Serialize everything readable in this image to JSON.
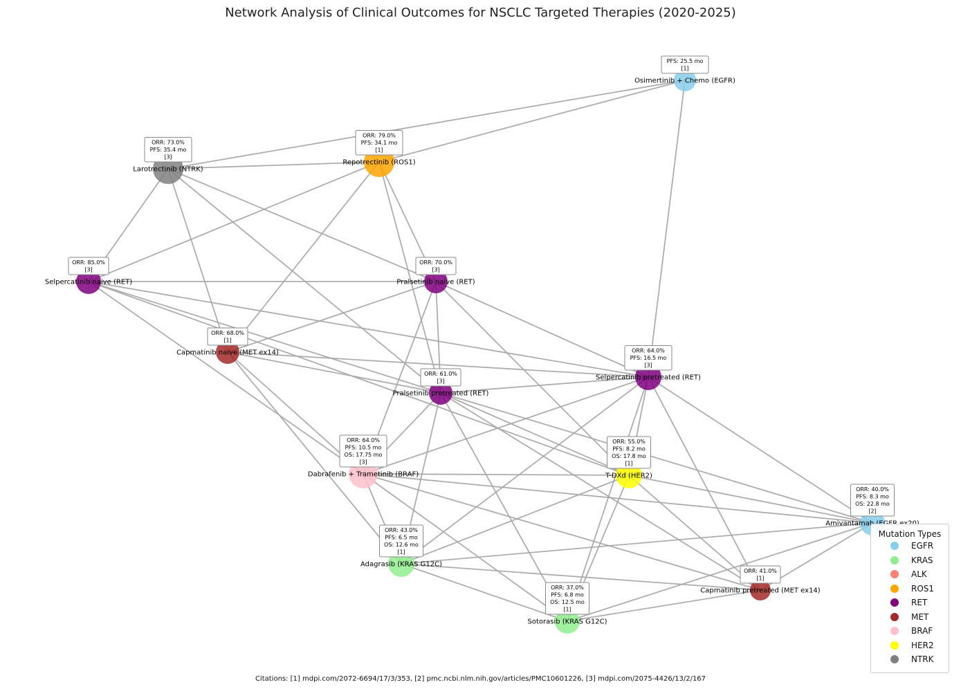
{
  "title": "Network Analysis of Clinical Outcomes for NSCLC Targeted Therapies (2020-2025)",
  "citations": "Citations: [1] mdpi.com/2072-6694/17/3/353, [2] pmc.ncbi.nlm.nih.gov/articles/PMC10601226, [3] mdpi.com/2075-4426/13/2/167",
  "legend": {
    "title": "Mutation Types",
    "items": [
      {
        "label": "EGFR",
        "color": "#87ceeb"
      },
      {
        "label": "KRAS",
        "color": "#90ee90"
      },
      {
        "label": "ALK",
        "color": "#fa8072"
      },
      {
        "label": "ROS1",
        "color": "#ffa500"
      },
      {
        "label": "RET",
        "color": "#800080"
      },
      {
        "label": "MET",
        "color": "#a52a2a"
      },
      {
        "label": "BRAF",
        "color": "#ffc0cb"
      },
      {
        "label": "HER2",
        "color": "#ffff00"
      },
      {
        "label": "NTRK",
        "color": "#808080"
      }
    ]
  },
  "nodes": [
    {
      "id": "osimertinib",
      "label": "Osimertinib + Chemo (EGFR)",
      "mutation": "EGFR",
      "metrics": [
        "PFS: 25.5 mo",
        "[1]"
      ]
    },
    {
      "id": "repotrectinib",
      "label": "Repotrectinib (ROS1)",
      "mutation": "ROS1",
      "metrics": [
        "ORR: 79.0%",
        "PFS: 34.1 mo",
        "[1]"
      ]
    },
    {
      "id": "larotrectinib",
      "label": "Larotrectinib (NTRK)",
      "mutation": "NTRK",
      "metrics": [
        "ORR: 73.0%",
        "PFS: 35.4 mo",
        "[3]"
      ]
    },
    {
      "id": "selpercatinib_naive",
      "label": "Selpercatinib naive (RET)",
      "mutation": "RET",
      "metrics": [
        "ORR: 85.0%",
        "[3]"
      ]
    },
    {
      "id": "pralsetinib_naive",
      "label": "Pralsetinib naive (RET)",
      "mutation": "RET",
      "metrics": [
        "ORR: 70.0%",
        "[3]"
      ]
    },
    {
      "id": "capmatinib_naive",
      "label": "Capmatinib naive (MET ex14)",
      "mutation": "MET",
      "metrics": [
        "ORR: 68.0%",
        "[1]"
      ]
    },
    {
      "id": "selpercatinib_pre",
      "label": "Selpercatinib pretreated (RET)",
      "mutation": "RET",
      "metrics": [
        "ORR: 64.0%",
        "PFS: 16.5 mo",
        "[3]"
      ]
    },
    {
      "id": "pralsetinib_pre",
      "label": "Pralsetinib pretreated (RET)",
      "mutation": "RET",
      "metrics": [
        "ORR: 61.0%",
        "[3]"
      ]
    },
    {
      "id": "dabrafenib",
      "label": "Dabrafenib + Trametinib (BRAF)",
      "mutation": "BRAF",
      "metrics": [
        "ORR: 64.0%",
        "PFS: 10.5 mo",
        "OS: 17.75 mo",
        "[3]"
      ]
    },
    {
      "id": "tdxd",
      "label": "T-DXd (HER2)",
      "mutation": "HER2",
      "metrics": [
        "ORR: 55.0%",
        "PFS: 8.2 mo",
        "OS: 17.8 mo",
        "[1]"
      ]
    },
    {
      "id": "amivantamab",
      "label": "Amivantamab (EGFR ex20)",
      "mutation": "EGFR",
      "metrics": [
        "ORR: 40.0%",
        "PFS: 8.3 mo",
        "OS: 22.8 mo",
        "[2]"
      ]
    },
    {
      "id": "adagrasib",
      "label": "Adagrasib (KRAS G12C)",
      "mutation": "KRAS",
      "metrics": [
        "ORR: 43.0%",
        "PFS: 6.5 mo",
        "OS: 12.6 mo",
        "[1]"
      ]
    },
    {
      "id": "capmatinib_pre",
      "label": "Capmatinib pretreated (MET ex14)",
      "mutation": "MET",
      "metrics": [
        "ORR: 41.0%",
        "[1]"
      ]
    },
    {
      "id": "sotorasib",
      "label": "Sotorasib (KRAS G12C)",
      "mutation": "KRAS",
      "metrics": [
        "ORR: 37.0%",
        "PFS: 6.8 mo",
        "OS: 12.5 mo",
        "[1]"
      ]
    }
  ],
  "edges": [
    [
      "osimertinib",
      "larotrectinib"
    ],
    [
      "osimertinib",
      "repotrectinib"
    ],
    [
      "osimertinib",
      "selpercatinib_pre"
    ],
    [
      "larotrectinib",
      "repotrectinib"
    ],
    [
      "larotrectinib",
      "selpercatinib_naive"
    ],
    [
      "larotrectinib",
      "capmatinib_naive"
    ],
    [
      "larotrectinib",
      "pralsetinib_naive"
    ],
    [
      "larotrectinib",
      "pralsetinib_pre"
    ],
    [
      "repotrectinib",
      "selpercatinib_naive"
    ],
    [
      "repotrectinib",
      "capmatinib_naive"
    ],
    [
      "repotrectinib",
      "pralsetinib_naive"
    ],
    [
      "repotrectinib",
      "pralsetinib_pre"
    ],
    [
      "selpercatinib_naive",
      "pralsetinib_naive"
    ],
    [
      "selpercatinib_naive",
      "selpercatinib_pre"
    ],
    [
      "selpercatinib_naive",
      "pralsetinib_pre"
    ],
    [
      "selpercatinib_naive",
      "dabrafenib"
    ],
    [
      "selpercatinib_naive",
      "tdxd"
    ],
    [
      "pralsetinib_naive",
      "capmatinib_naive"
    ],
    [
      "pralsetinib_naive",
      "pralsetinib_pre"
    ],
    [
      "pralsetinib_naive",
      "selpercatinib_pre"
    ],
    [
      "pralsetinib_naive",
      "dabrafenib"
    ],
    [
      "pralsetinib_naive",
      "tdxd"
    ],
    [
      "capmatinib_naive",
      "selpercatinib_pre"
    ],
    [
      "capmatinib_naive",
      "pralsetinib_pre"
    ],
    [
      "capmatinib_naive",
      "dabrafenib"
    ],
    [
      "capmatinib_naive",
      "adagrasib"
    ],
    [
      "selpercatinib_pre",
      "pralsetinib_pre"
    ],
    [
      "selpercatinib_pre",
      "dabrafenib"
    ],
    [
      "selpercatinib_pre",
      "tdxd"
    ],
    [
      "selpercatinib_pre",
      "adagrasib"
    ],
    [
      "selpercatinib_pre",
      "sotorasib"
    ],
    [
      "selpercatinib_pre",
      "amivantamab"
    ],
    [
      "selpercatinib_pre",
      "capmatinib_pre"
    ],
    [
      "pralsetinib_pre",
      "dabrafenib"
    ],
    [
      "pralsetinib_pre",
      "tdxd"
    ],
    [
      "pralsetinib_pre",
      "adagrasib"
    ],
    [
      "pralsetinib_pre",
      "sotorasib"
    ],
    [
      "pralsetinib_pre",
      "amivantamab"
    ],
    [
      "pralsetinib_pre",
      "capmatinib_pre"
    ],
    [
      "dabrafenib",
      "tdxd"
    ],
    [
      "dabrafenib",
      "adagrasib"
    ],
    [
      "dabrafenib",
      "sotorasib"
    ],
    [
      "dabrafenib",
      "amivantamab"
    ],
    [
      "dabrafenib",
      "capmatinib_pre"
    ],
    [
      "tdxd",
      "adagrasib"
    ],
    [
      "tdxd",
      "sotorasib"
    ],
    [
      "tdxd",
      "amivantamab"
    ],
    [
      "tdxd",
      "capmatinib_pre"
    ],
    [
      "adagrasib",
      "amivantamab"
    ],
    [
      "adagrasib",
      "capmatinib_pre"
    ],
    [
      "adagrasib",
      "sotorasib"
    ],
    [
      "sotorasib",
      "amivantamab"
    ],
    [
      "sotorasib",
      "capmatinib_pre"
    ],
    [
      "capmatinib_pre",
      "amivantamab"
    ]
  ]
}
